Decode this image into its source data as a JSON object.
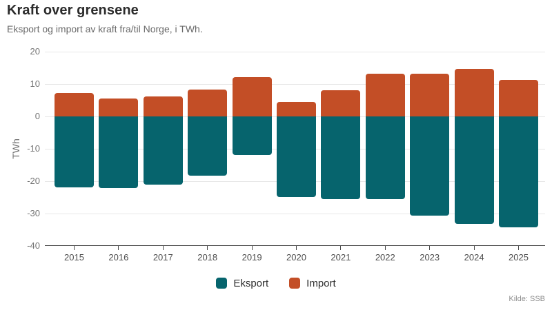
{
  "header": {
    "title": "Kraft over grensene",
    "subtitle": "Eksport og import av kraft fra/til Norge, i TWh."
  },
  "footer": {
    "source": "Kilde: SSB"
  },
  "chart_data": {
    "type": "bar",
    "stacked": true,
    "title": "Kraft over grensene",
    "subtitle": "Eksport og import av kraft fra/til Norge, i TWh.",
    "categories": [
      "2015",
      "2016",
      "2017",
      "2018",
      "2019",
      "2020",
      "2021",
      "2022",
      "2023",
      "2024",
      "2025"
    ],
    "series": [
      {
        "name": "Eksport",
        "color": "#06646d",
        "values": [
          -22.0,
          -22.1,
          -21.1,
          -18.4,
          -11.9,
          -24.9,
          -25.5,
          -25.5,
          -30.7,
          -33.1,
          -34.2
        ]
      },
      {
        "name": "Import",
        "color": "#c34e26",
        "values": [
          7.3,
          5.6,
          6.1,
          8.2,
          12.2,
          4.4,
          8.1,
          13.2,
          13.1,
          14.6,
          11.3
        ]
      }
    ],
    "xlabel": "",
    "ylabel": "TWh",
    "ylim": [
      -40,
      20
    ],
    "yticks": [
      20,
      10,
      0,
      -10,
      -20,
      -30,
      -40
    ],
    "grid": true,
    "legend_position": "bottom",
    "grid_color": "#e7e7e7",
    "axis_color": "#4a4a4a"
  }
}
